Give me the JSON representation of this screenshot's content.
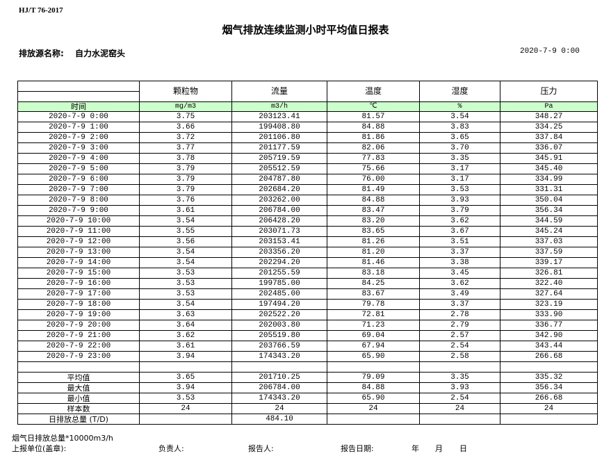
{
  "standard": "HJ/T  76-2017",
  "title": "烟气排放连续监测小时平均值日报表",
  "source_label": "排放源名称:",
  "source_value": "自力水泥窑头",
  "report_datetime": "2020-7-9 0:00",
  "columns": [
    {
      "name": "颗粒物",
      "unit": "mg/m3"
    },
    {
      "name": "流量",
      "unit": "m3/h"
    },
    {
      "name": "温度",
      "unit": "℃"
    },
    {
      "name": "湿度",
      "unit": "%"
    },
    {
      "name": "压力",
      "unit": "Pa"
    }
  ],
  "time_header": "时间",
  "unit_row_color": "#ccffcc",
  "rows": [
    [
      "2020-7-9 0:00",
      "3.75",
      "203123.41",
      "81.57",
      "3.54",
      "348.27"
    ],
    [
      "2020-7-9 1:00",
      "3.66",
      "199408.80",
      "84.88",
      "3.83",
      "334.25"
    ],
    [
      "2020-7-9 2:00",
      "3.72",
      "201106.80",
      "81.86",
      "3.65",
      "337.84"
    ],
    [
      "2020-7-9 3:00",
      "3.77",
      "201177.59",
      "82.06",
      "3.70",
      "336.07"
    ],
    [
      "2020-7-9 4:00",
      "3.78",
      "205719.59",
      "77.83",
      "3.35",
      "345.91"
    ],
    [
      "2020-7-9 5:00",
      "3.79",
      "205512.59",
      "75.66",
      "3.17",
      "345.40"
    ],
    [
      "2020-7-9 6:00",
      "3.79",
      "204787.80",
      "76.00",
      "3.17",
      "334.99"
    ],
    [
      "2020-7-9 7:00",
      "3.79",
      "202684.20",
      "81.49",
      "3.53",
      "331.31"
    ],
    [
      "2020-7-9 8:00",
      "3.76",
      "203262.00",
      "84.88",
      "3.93",
      "350.04"
    ],
    [
      "2020-7-9 9:00",
      "3.61",
      "206784.00",
      "83.47",
      "3.79",
      "356.34"
    ],
    [
      "2020-7-9 10:00",
      "3.54",
      "206428.20",
      "83.20",
      "3.62",
      "344.59"
    ],
    [
      "2020-7-9 11:00",
      "3.55",
      "203071.73",
      "83.65",
      "3.67",
      "345.24"
    ],
    [
      "2020-7-9 12:00",
      "3.56",
      "203153.41",
      "81.26",
      "3.51",
      "337.03"
    ],
    [
      "2020-7-9 13:00",
      "3.54",
      "203356.20",
      "81.20",
      "3.37",
      "337.59"
    ],
    [
      "2020-7-9 14:00",
      "3.54",
      "202294.20",
      "81.46",
      "3.38",
      "339.17"
    ],
    [
      "2020-7-9 15:00",
      "3.53",
      "201255.59",
      "83.18",
      "3.45",
      "326.81"
    ],
    [
      "2020-7-9 16:00",
      "3.53",
      "199785.00",
      "84.25",
      "3.62",
      "322.40"
    ],
    [
      "2020-7-9 17:00",
      "3.53",
      "202485.00",
      "83.67",
      "3.49",
      "327.64"
    ],
    [
      "2020-7-9 18:00",
      "3.54",
      "197494.20",
      "79.78",
      "3.37",
      "323.19"
    ],
    [
      "2020-7-9 19:00",
      "3.63",
      "202522.20",
      "72.81",
      "2.78",
      "333.90"
    ],
    [
      "2020-7-9 20:00",
      "3.64",
      "202003.80",
      "71.23",
      "2.79",
      "336.77"
    ],
    [
      "2020-7-9 21:00",
      "3.62",
      "205519.80",
      "69.04",
      "2.57",
      "342.90"
    ],
    [
      "2020-7-9 22:00",
      "3.61",
      "203766.59",
      "67.94",
      "2.54",
      "343.44"
    ],
    [
      "2020-7-9 23:00",
      "3.94",
      "174343.20",
      "65.90",
      "2.58",
      "266.68"
    ]
  ],
  "summary": [
    [
      "平均值",
      "3.65",
      "201710.25",
      "79.09",
      "3.35",
      "335.32"
    ],
    [
      "最大值",
      "3.94",
      "206784.00",
      "84.88",
      "3.93",
      "356.34"
    ],
    [
      "最小值",
      "3.53",
      "174343.20",
      "65.90",
      "2.54",
      "266.68"
    ],
    [
      "样本数",
      "24",
      "24",
      "24",
      "24",
      "24"
    ],
    [
      "日排放总量 (T/D)",
      "",
      "484.10",
      "",
      "",
      ""
    ]
  ],
  "footer": {
    "note": "烟气日排放总量*10000m3/h",
    "unit_label": "上报单位(盖章):",
    "responsible_label": "负责人:",
    "reporter_label": "报告人:",
    "report_date_label": "报告日期:",
    "year": "年",
    "month": "月",
    "day": "日"
  }
}
